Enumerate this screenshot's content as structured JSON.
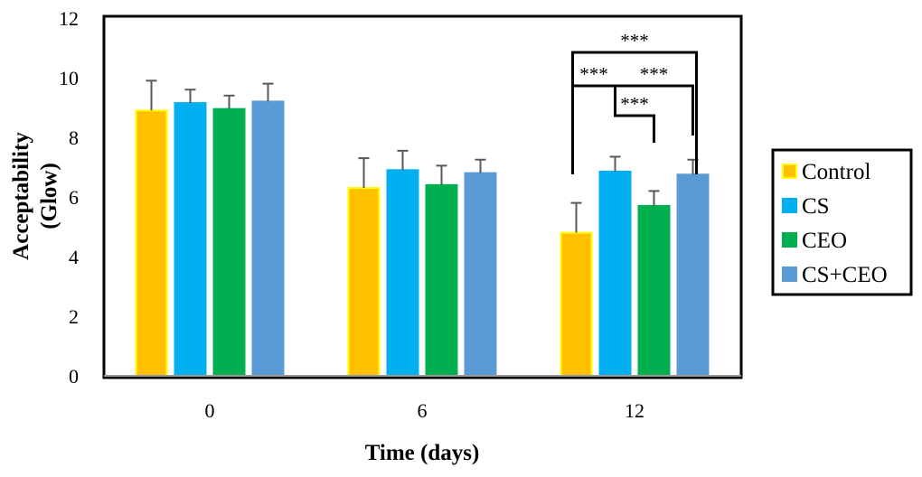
{
  "chart_data": {
    "type": "bar",
    "title": "",
    "xlabel": "Time (days)",
    "ylabel": [
      "Acceptability",
      "(Glow)"
    ],
    "categories": [
      "0",
      "6",
      "12"
    ],
    "ylim": [
      0,
      12
    ],
    "yticks": [
      0,
      2,
      4,
      6,
      8,
      10,
      12
    ],
    "grid": false,
    "legend_position": "right",
    "series": [
      {
        "name": "Control",
        "values": [
          8.9,
          6.3,
          4.8
        ],
        "errors": [
          1.0,
          1.0,
          1.0
        ],
        "color": "#FFC000",
        "stroke": "#FFFF00"
      },
      {
        "name": "CS",
        "values": [
          9.15,
          6.9,
          6.85
        ],
        "errors": [
          0.45,
          0.65,
          0.5
        ],
        "color": "#00B0F0",
        "stroke": "#00B0F0"
      },
      {
        "name": "CEO",
        "values": [
          8.95,
          6.4,
          5.7
        ],
        "errors": [
          0.45,
          0.65,
          0.5
        ],
        "color": "#00B050",
        "stroke": "#00B050"
      },
      {
        "name": "CS+CEO",
        "values": [
          9.2,
          6.8,
          6.75
        ],
        "errors": [
          0.6,
          0.45,
          0.5
        ],
        "color": "#5B9BD5",
        "stroke": "#5B9BD5"
      }
    ],
    "significance": [
      {
        "category": "12",
        "from": "Control",
        "to": "CS+CEO",
        "label": "***"
      },
      {
        "category": "12",
        "from": "Control",
        "to": "CS",
        "label": "***"
      },
      {
        "category": "12",
        "from": "CS",
        "to": "CEO",
        "label": "***"
      },
      {
        "category": "12",
        "from": "CS",
        "to": "CS+CEO",
        "label": "***"
      }
    ]
  }
}
